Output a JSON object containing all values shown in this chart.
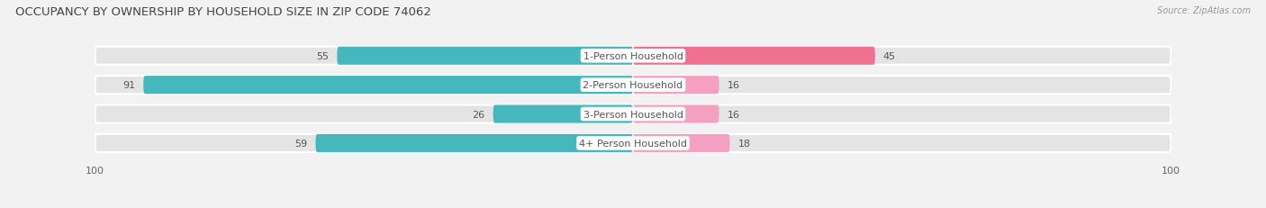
{
  "title": "OCCUPANCY BY OWNERSHIP BY HOUSEHOLD SIZE IN ZIP CODE 74062",
  "source": "Source: ZipAtlas.com",
  "categories": [
    "1-Person Household",
    "2-Person Household",
    "3-Person Household",
    "4+ Person Household"
  ],
  "owner_values": [
    55,
    91,
    26,
    59
  ],
  "renter_values": [
    45,
    16,
    16,
    18
  ],
  "max_value": 100,
  "owner_color": "#45B8BE",
  "renter_color": "#F07090",
  "renter_light_color": "#F5A0C0",
  "bg_color": "#f2f2f2",
  "bar_track_color": "#e4e4e4",
  "title_fontsize": 9.5,
  "source_fontsize": 7,
  "label_fontsize": 8,
  "value_fontsize": 8,
  "axis_tick_fontsize": 8,
  "legend_fontsize": 8
}
